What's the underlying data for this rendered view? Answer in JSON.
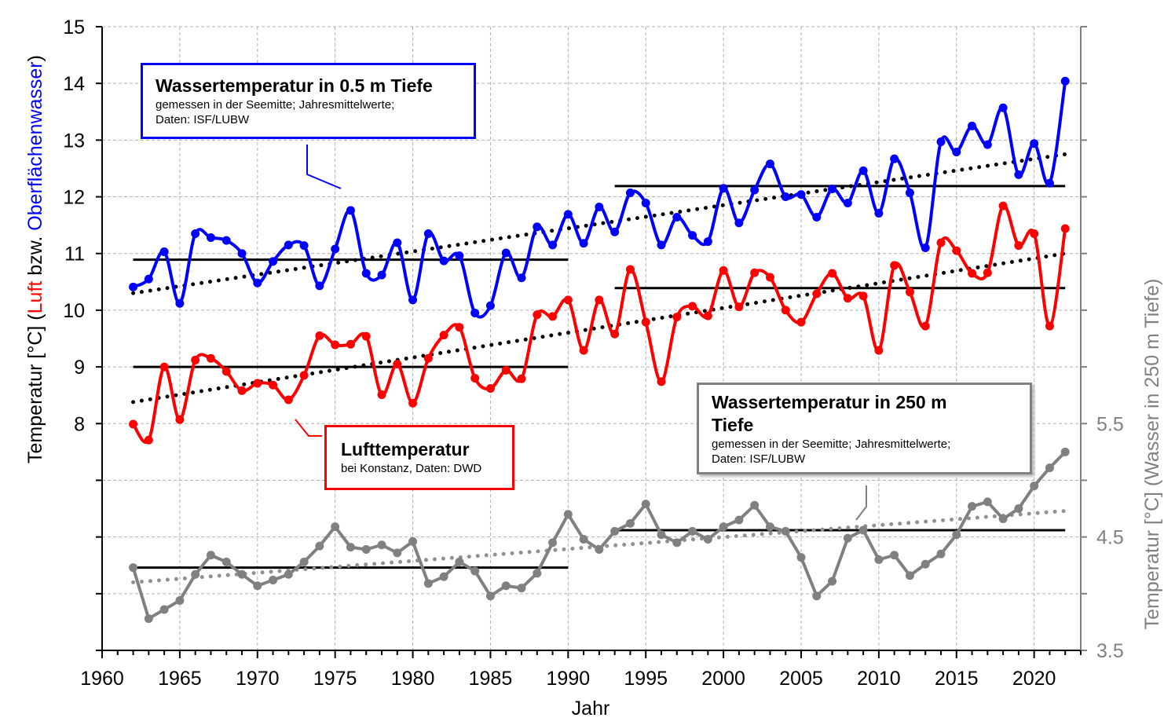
{
  "chart_data": {
    "type": "line",
    "xlabel": "Jahr",
    "ylabel_parts": [
      {
        "text": "Temperatur [°C] (",
        "color": "#000000"
      },
      {
        "text": "Luft",
        "color": "#ff0000"
      },
      {
        "text": " bzw. ",
        "color": "#000000"
      },
      {
        "text": "Oberflächenwasser",
        "color": "#0000ff"
      },
      {
        "text": ")",
        "color": "#000000"
      }
    ],
    "y2label": "Temperatur [°C] (Wasser in 250 m Tiefe)",
    "xlim": [
      1960,
      2023
    ],
    "ylim": [
      4,
      15
    ],
    "y2lim": [
      3.5,
      9
    ],
    "xticks": [
      1960,
      1965,
      1970,
      1975,
      1980,
      1985,
      1990,
      1995,
      2000,
      2005,
      2010,
      2015,
      2020
    ],
    "yticks_labeled": [
      8,
      9,
      10,
      11,
      12,
      13,
      14,
      15
    ],
    "y2ticks_labeled": [
      3.5,
      4.5,
      5.5
    ],
    "grid": true,
    "x": [
      1962,
      1963,
      1964,
      1965,
      1966,
      1967,
      1968,
      1969,
      1970,
      1971,
      1972,
      1973,
      1974,
      1975,
      1976,
      1977,
      1978,
      1979,
      1980,
      1981,
      1982,
      1983,
      1984,
      1985,
      1986,
      1987,
      1988,
      1989,
      1990,
      1991,
      1992,
      1993,
      1994,
      1995,
      1996,
      1997,
      1998,
      1999,
      2000,
      2001,
      2002,
      2003,
      2004,
      2005,
      2006,
      2007,
      2008,
      2009,
      2010,
      2011,
      2012,
      2013,
      2014,
      2015,
      2016,
      2017,
      2018,
      2019,
      2020,
      2021,
      2022
    ],
    "series": [
      {
        "name": "Wassertemperatur in 0.5 m Tiefe",
        "color": "#0000ff",
        "axis": "left",
        "smooth": true,
        "values": [
          10.41,
          10.55,
          11.03,
          10.12,
          11.35,
          11.28,
          11.23,
          11.0,
          10.48,
          10.86,
          11.15,
          11.14,
          10.43,
          11.08,
          11.76,
          10.65,
          10.62,
          11.19,
          10.18,
          11.35,
          10.87,
          10.96,
          9.95,
          10.08,
          11.01,
          10.57,
          11.47,
          11.15,
          11.69,
          11.18,
          11.82,
          11.38,
          12.07,
          11.89,
          11.15,
          11.64,
          11.32,
          11.21,
          12.15,
          11.54,
          12.12,
          12.58,
          12.0,
          12.04,
          11.64,
          12.14,
          11.89,
          12.46,
          11.71,
          12.67,
          12.07,
          11.1,
          12.97,
          12.79,
          13.25,
          12.92,
          13.57,
          12.39,
          12.94,
          12.24,
          14.04
        ],
        "means": [
          {
            "from": 1962,
            "to": 1990,
            "value": 10.89
          },
          {
            "from": 1993,
            "to": 2022,
            "value": 12.19
          }
        ],
        "trend": {
          "from": [
            1962,
            10.3
          ],
          "to": [
            2022,
            12.75
          ]
        }
      },
      {
        "name": "Lufttemperatur",
        "color": "#ff0000",
        "axis": "left",
        "smooth": true,
        "values": [
          7.99,
          7.71,
          9.0,
          8.07,
          9.12,
          9.15,
          8.92,
          8.58,
          8.71,
          8.68,
          8.42,
          8.85,
          9.55,
          9.39,
          9.4,
          9.54,
          8.51,
          9.05,
          8.36,
          9.15,
          9.56,
          9.7,
          8.8,
          8.62,
          8.94,
          8.79,
          9.92,
          9.89,
          10.18,
          9.29,
          10.18,
          9.58,
          10.72,
          9.79,
          8.74,
          9.88,
          10.07,
          9.9,
          10.7,
          10.06,
          10.66,
          10.58,
          10.0,
          9.79,
          10.29,
          10.65,
          10.21,
          10.25,
          9.29,
          10.79,
          10.32,
          9.72,
          11.19,
          11.05,
          10.65,
          10.66,
          11.84,
          11.14,
          11.35,
          9.72,
          11.44
        ],
        "means": [
          {
            "from": 1962,
            "to": 1990,
            "value": 9.0
          },
          {
            "from": 1993,
            "to": 2022,
            "value": 10.39
          }
        ],
        "trend": {
          "from": [
            1962,
            8.38
          ],
          "to": [
            2022,
            11.0
          ]
        }
      },
      {
        "name": "Wassertemperatur in 250 m Tiefe",
        "color": "#808080",
        "axis": "right",
        "smooth": false,
        "values": [
          4.23,
          3.78,
          3.86,
          3.94,
          4.17,
          4.34,
          4.28,
          4.17,
          4.07,
          4.12,
          4.17,
          4.28,
          4.42,
          4.59,
          4.41,
          4.39,
          4.43,
          4.36,
          4.46,
          4.09,
          4.15,
          4.28,
          4.2,
          3.98,
          4.07,
          4.05,
          4.18,
          4.45,
          4.7,
          4.48,
          4.39,
          4.55,
          4.62,
          4.79,
          4.52,
          4.45,
          4.55,
          4.48,
          4.59,
          4.65,
          4.78,
          4.59,
          4.55,
          4.32,
          3.98,
          4.11,
          4.49,
          4.56,
          4.3,
          4.34,
          4.16,
          4.26,
          4.35,
          4.52,
          4.77,
          4.81,
          4.66,
          4.75,
          4.95,
          5.11,
          5.25
        ],
        "means": [
          {
            "from": 1962,
            "to": 1990,
            "value": 4.23
          },
          {
            "from": 1993,
            "to": 2022,
            "value": 4.56
          }
        ],
        "trend": {
          "from": [
            1962,
            4.1
          ],
          "to": [
            2022,
            4.73
          ]
        }
      }
    ],
    "annotations": {
      "surface": {
        "title": "Wassertemperatur in 0.5 m  Tiefe",
        "line1": "gemessen  in der Seemitte;  Jahresmittelwerte;",
        "line2": "Daten:  ISF/LUBW",
        "color": "#0000ff"
      },
      "air": {
        "title": "Lufttemperatur",
        "line1": "bei Konstanz,  Daten: DWD",
        "color": "#ff0000"
      },
      "deep": {
        "title": "Wassertemperatur  in 250 m",
        "title2": "Tiefe",
        "line1": "gemessen  in der Seemitte;  Jahresmittelwerte;",
        "line2": "Daten:  ISF/LUBW",
        "color": "#808080"
      }
    }
  }
}
